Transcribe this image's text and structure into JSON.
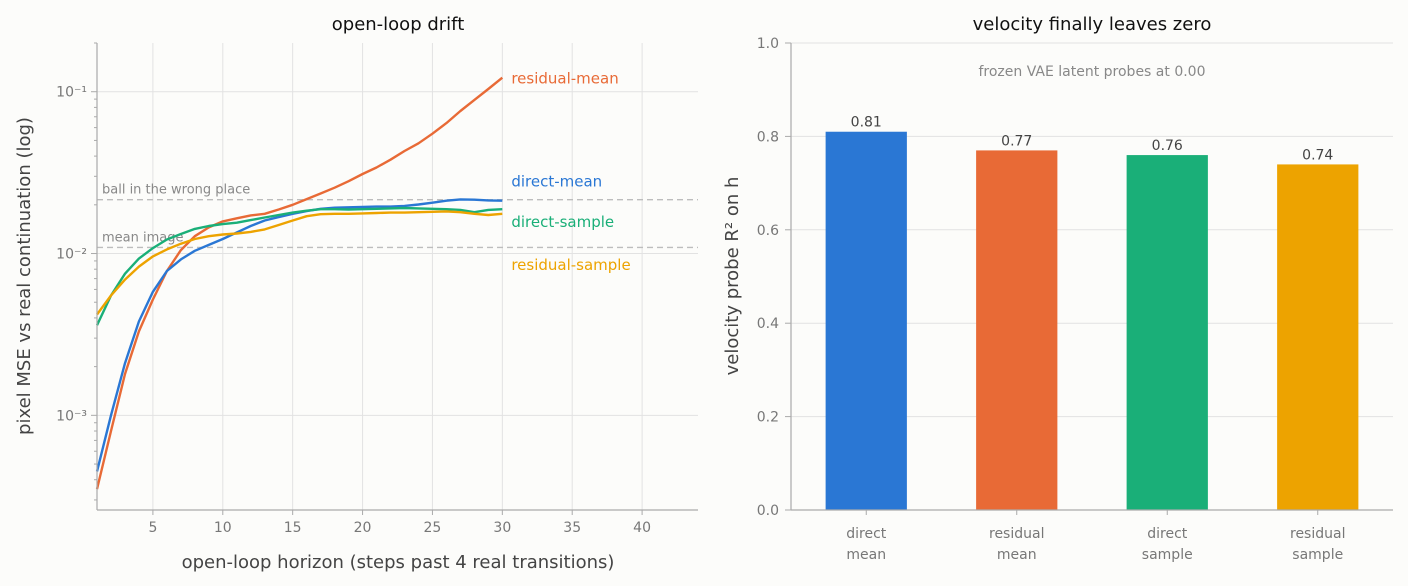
{
  "chart_data": [
    {
      "type": "line",
      "title": "open-loop drift",
      "xlabel": "open-loop horizon (steps past 4 real transitions)",
      "ylabel": "pixel MSE vs real continuation (log)",
      "xscale": "linear",
      "yscale": "log",
      "xlim": [
        1,
        44
      ],
      "ylim": [
        0.00026,
        0.2
      ],
      "xticks": [
        "5",
        "10",
        "15",
        "20",
        "25",
        "30",
        "35",
        "40"
      ],
      "yticks": [
        "10⁻³",
        "10⁻²",
        "10⁻¹"
      ],
      "grid": true,
      "reference_lines": [
        {
          "label": "ball in the wrong place",
          "y": 0.0215
        },
        {
          "label": "mean image",
          "y": 0.0109
        }
      ],
      "series": [
        {
          "name": "residual-mean",
          "color": "#e86a36",
          "points": [
            [
              1,
              0.00035
            ],
            [
              2,
              0.0008
            ],
            [
              3,
              0.0018
            ],
            [
              4,
              0.0033
            ],
            [
              5,
              0.0052
            ],
            [
              6,
              0.0078
            ],
            [
              7,
              0.0105
            ],
            [
              8,
              0.0128
            ],
            [
              9,
              0.0145
            ],
            [
              10,
              0.0158
            ],
            [
              11,
              0.0165
            ],
            [
              12,
              0.0172
            ],
            [
              13,
              0.0176
            ],
            [
              14,
              0.0187
            ],
            [
              15,
              0.02
            ],
            [
              16,
              0.0217
            ],
            [
              17,
              0.0235
            ],
            [
              18,
              0.0255
            ],
            [
              19,
              0.028
            ],
            [
              20,
              0.031
            ],
            [
              21,
              0.034
            ],
            [
              22,
              0.038
            ],
            [
              23,
              0.043
            ],
            [
              24,
              0.048
            ],
            [
              25,
              0.055
            ],
            [
              26,
              0.064
            ],
            [
              27,
              0.076
            ],
            [
              28,
              0.089
            ],
            [
              29,
              0.104
            ],
            [
              30,
              0.122
            ]
          ]
        },
        {
          "name": "direct-mean",
          "color": "#2a77d4",
          "points": [
            [
              1,
              0.00045
            ],
            [
              2,
              0.001
            ],
            [
              3,
              0.0021
            ],
            [
              4,
              0.0038
            ],
            [
              5,
              0.0058
            ],
            [
              6,
              0.0078
            ],
            [
              7,
              0.0092
            ],
            [
              8,
              0.0104
            ],
            [
              9,
              0.0113
            ],
            [
              10,
              0.0123
            ],
            [
              11,
              0.0135
            ],
            [
              12,
              0.0148
            ],
            [
              13,
              0.016
            ],
            [
              14,
              0.0168
            ],
            [
              15,
              0.0176
            ],
            [
              16,
              0.0183
            ],
            [
              17,
              0.0189
            ],
            [
              18,
              0.0192
            ],
            [
              19,
              0.0193
            ],
            [
              20,
              0.0194
            ],
            [
              21,
              0.0195
            ],
            [
              22,
              0.0195
            ],
            [
              23,
              0.0197
            ],
            [
              24,
              0.0201
            ],
            [
              25,
              0.0206
            ],
            [
              26,
              0.0212
            ],
            [
              27,
              0.0216
            ],
            [
              28,
              0.0215
            ],
            [
              29,
              0.0213
            ],
            [
              30,
              0.0212
            ]
          ]
        },
        {
          "name": "direct-sample",
          "color": "#1aaf78",
          "points": [
            [
              1,
              0.0036
            ],
            [
              2,
              0.0055
            ],
            [
              3,
              0.0075
            ],
            [
              4,
              0.0093
            ],
            [
              5,
              0.0108
            ],
            [
              6,
              0.0122
            ],
            [
              7,
              0.0132
            ],
            [
              8,
              0.0142
            ],
            [
              9,
              0.0148
            ],
            [
              10,
              0.0152
            ],
            [
              11,
              0.0155
            ],
            [
              12,
              0.0161
            ],
            [
              13,
              0.0167
            ],
            [
              14,
              0.0173
            ],
            [
              15,
              0.0179
            ],
            [
              16,
              0.0184
            ],
            [
              17,
              0.0188
            ],
            [
              18,
              0.0188
            ],
            [
              19,
              0.0187
            ],
            [
              20,
              0.0188
            ],
            [
              21,
              0.0189
            ],
            [
              22,
              0.019
            ],
            [
              23,
              0.0191
            ],
            [
              24,
              0.019
            ],
            [
              25,
              0.0189
            ],
            [
              26,
              0.0188
            ],
            [
              27,
              0.0186
            ],
            [
              28,
              0.018
            ],
            [
              29,
              0.0186
            ],
            [
              30,
              0.0188
            ]
          ]
        },
        {
          "name": "residual-sample",
          "color": "#eda300",
          "points": [
            [
              1,
              0.0042
            ],
            [
              2,
              0.0055
            ],
            [
              3,
              0.0069
            ],
            [
              4,
              0.0083
            ],
            [
              5,
              0.0096
            ],
            [
              6,
              0.0106
            ],
            [
              7,
              0.0115
            ],
            [
              8,
              0.0123
            ],
            [
              9,
              0.0128
            ],
            [
              10,
              0.0131
            ],
            [
              11,
              0.0133
            ],
            [
              12,
              0.0136
            ],
            [
              13,
              0.0141
            ],
            [
              14,
              0.015
            ],
            [
              15,
              0.016
            ],
            [
              16,
              0.017
            ],
            [
              17,
              0.0175
            ],
            [
              18,
              0.0176
            ],
            [
              19,
              0.0176
            ],
            [
              20,
              0.0177
            ],
            [
              21,
              0.0178
            ],
            [
              22,
              0.0179
            ],
            [
              23,
              0.0179
            ],
            [
              24,
              0.018
            ],
            [
              25,
              0.0181
            ],
            [
              26,
              0.0182
            ],
            [
              27,
              0.018
            ],
            [
              28,
              0.0176
            ],
            [
              29,
              0.0173
            ],
            [
              30,
              0.0176
            ]
          ]
        }
      ]
    },
    {
      "type": "bar",
      "title": "velocity finally leaves zero",
      "xlabel": "",
      "ylabel": "velocity probe R² on h",
      "ylim": [
        0,
        1.0
      ],
      "yticks": [
        "0.0",
        "0.2",
        "0.4",
        "0.6",
        "0.8",
        "1.0"
      ],
      "grid": true,
      "annotation": "frozen VAE latent probes at 0.00",
      "categories": [
        [
          "direct",
          "mean"
        ],
        [
          "residual",
          "mean"
        ],
        [
          "direct",
          "sample"
        ],
        [
          "residual",
          "sample"
        ]
      ],
      "values": [
        0.81,
        0.77,
        0.76,
        0.74
      ],
      "value_labels": [
        "0.81",
        "0.77",
        "0.76",
        "0.74"
      ],
      "colors": [
        "#2a77d4",
        "#e86a36",
        "#1aaf78",
        "#eda300"
      ]
    }
  ]
}
